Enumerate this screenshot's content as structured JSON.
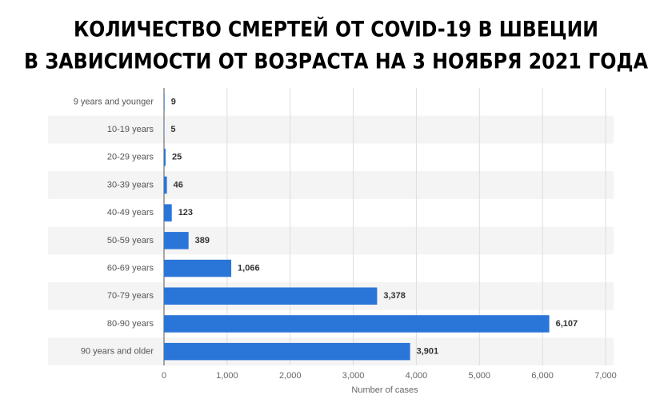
{
  "chart_data": {
    "type": "bar",
    "orientation": "horizontal",
    "title": [
      "КОЛИЧЕСТВО СМЕРТЕЙ ОТ COVID-19 В ШВЕЦИИ",
      "В ЗАВИСИМОСТИ ОТ ВОЗРАСТА НА 3 НОЯБРЯ 2021 ГОДА"
    ],
    "categories": [
      "9 years and younger",
      "10-19 years",
      "20-29 years",
      "30-39 years",
      "40-49 years",
      "50-59 years",
      "60-69 years",
      "70-79 years",
      "80-90 years",
      "90 years and older"
    ],
    "values": [
      9,
      5,
      25,
      46,
      123,
      389,
      1066,
      3378,
      6107,
      3901
    ],
    "value_labels": [
      "9",
      "5",
      "25",
      "46",
      "123",
      "389",
      "1,066",
      "3,378",
      "6,107",
      "3,901"
    ],
    "color": "#2a75d8",
    "x_label": "Number of cases",
    "xlim": [
      0,
      7000
    ],
    "xticks": [
      0,
      {
        "value": 1000,
        "label": "1,000"
      },
      {
        "value": 2000,
        "label": "2,000"
      },
      {
        "value": 3000,
        "label": "3,000"
      },
      {
        "value": 4000,
        "label": "4,000"
      },
      {
        "value": 5000,
        "label": "5,000"
      },
      {
        "value": 6000,
        "label": "6,000"
      },
      {
        "value": 7000,
        "label": "7,000"
      }
    ],
    "grid": true
  }
}
